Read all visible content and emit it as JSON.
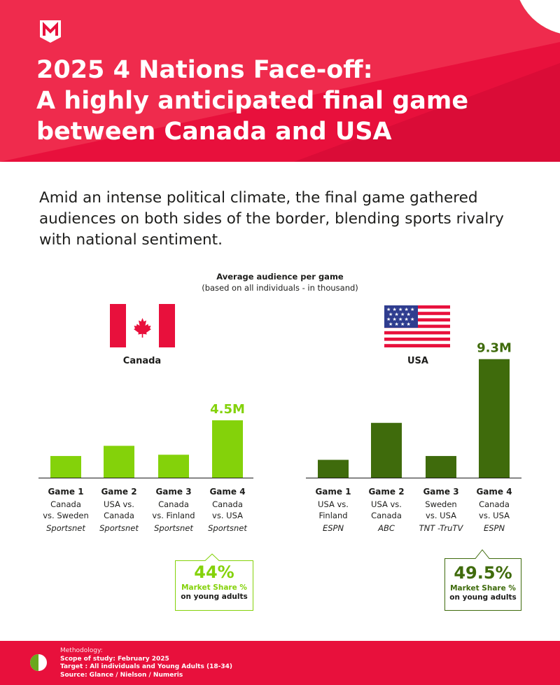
{
  "header": {
    "title_lines": [
      "2025 4 Nations Face-off:",
      "A highly anticipated final game",
      "between Canada and USA"
    ]
  },
  "intro": "Amid an intense political climate, the final game gathered audiences on both sides of the border, blending sports rivalry with national sentiment.",
  "colors": {
    "brand_red": "#e8103c",
    "canada_bar": "#84d20a",
    "usa_bar": "#3f6b0c",
    "accent_green": "#6aa81e"
  },
  "chart_data": [
    {
      "type": "bar",
      "title": "Average audience per game",
      "subtitle": "(based on all individuals - in thousand)",
      "country": "Canada",
      "flag_icon": "canada-flag-icon",
      "color": "#84d20a",
      "categories": [
        "Game 1",
        "Game 2",
        "Game 3",
        "Game 4"
      ],
      "matchups": [
        "Canada vs. Sweden",
        "USA vs. Canada",
        "Canada vs. Finland",
        "Canada vs. USA"
      ],
      "matchup_lines": [
        [
          "Canada",
          "vs. Sweden"
        ],
        [
          "USA vs.",
          "Canada"
        ],
        [
          "Canada",
          "vs. Finland"
        ],
        [
          "Canada",
          "vs. USA"
        ]
      ],
      "broadcasters": [
        "Sportsnet",
        "Sportsnet",
        "Sportsnet",
        "Sportsnet"
      ],
      "values": [
        1.7,
        2.5,
        1.8,
        4.5
      ],
      "data_labels": [
        "",
        "",
        "",
        "4.5M"
      ],
      "ylim": [
        0,
        10
      ],
      "callout": {
        "value": "44%",
        "label": [
          "Market Share %",
          "on young adults"
        ]
      }
    },
    {
      "type": "bar",
      "country": "USA",
      "flag_icon": "usa-flag-icon",
      "color": "#3f6b0c",
      "categories": [
        "Game 1",
        "Game 2",
        "Game 3",
        "Game 4"
      ],
      "matchups": [
        "USA vs. Finland",
        "USA vs. Canada",
        "Sweden vs. USA",
        "Canada vs. USA"
      ],
      "matchup_lines": [
        [
          "USA vs.",
          "Finland"
        ],
        [
          "USA vs.",
          "Canada"
        ],
        [
          "Sweden",
          "vs. USA"
        ],
        [
          "Canada",
          "vs. USA"
        ]
      ],
      "broadcasters": [
        "ESPN",
        "ABC",
        "TNT -TruTV",
        "ESPN"
      ],
      "values": [
        1.4,
        4.3,
        1.7,
        9.3
      ],
      "data_labels": [
        "",
        "",
        "",
        "9.3M"
      ],
      "ylim": [
        0,
        10
      ],
      "callout": {
        "value": "49.5%",
        "label": [
          "Market Share %",
          "on young adults"
        ]
      }
    }
  ],
  "footer": {
    "heading": "Methodology:",
    "lines": [
      "Scope of study: February 2025",
      "Target : All individuals and Young Adults (18-34)",
      "Source: Glance / Nielson / Numeris"
    ]
  }
}
